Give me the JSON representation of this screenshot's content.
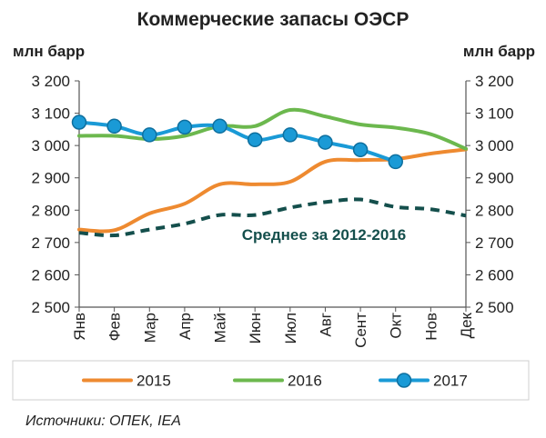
{
  "chart_data": {
    "type": "line",
    "title": "Коммерческие запасы ОЭСР",
    "ylabel_left": "млн барр",
    "ylabel_right": "млн барр",
    "ylim": [
      2500,
      3200
    ],
    "y_ticks": [
      2500,
      2600,
      2700,
      2800,
      2900,
      3000,
      3100,
      3200
    ],
    "y_tick_labels": [
      "2 500",
      "2 600",
      "2 700",
      "2 800",
      "2 900",
      "3 000",
      "3 100",
      "3 200"
    ],
    "categories": [
      "Янв",
      "Фев",
      "Мар",
      "Апр",
      "Май",
      "Июн",
      "Июл",
      "Авг",
      "Сент",
      "Окт",
      "Нов",
      "Дек"
    ],
    "series": [
      {
        "name": "2015",
        "color": "#ee8a30",
        "style": "solid",
        "values": [
          2740,
          2738,
          2790,
          2820,
          2880,
          2880,
          2888,
          2950,
          2955,
          2958,
          2975,
          2988
        ]
      },
      {
        "name": "2016",
        "color": "#6cb84e",
        "style": "solid",
        "values": [
          3030,
          3030,
          3020,
          3030,
          3060,
          3060,
          3110,
          3090,
          3065,
          3055,
          3035,
          2990
        ]
      },
      {
        "name": "2017",
        "color": "#1a9ad6",
        "style": "solid-markers",
        "values": [
          3072,
          3060,
          3033,
          3057,
          3060,
          3018,
          3033,
          3010,
          2987,
          2950,
          null,
          null
        ]
      },
      {
        "name": "",
        "color": "#144f4c",
        "style": "dashed",
        "values": [
          2730,
          2722,
          2740,
          2758,
          2785,
          2785,
          2808,
          2825,
          2833,
          2810,
          2803,
          2783
        ]
      }
    ],
    "annotation": {
      "text": "Среднее за 2012-2016",
      "color": "#144f4c"
    },
    "grid": false,
    "legend": {
      "position": "bottom",
      "items": [
        "2015",
        "2016",
        "2017"
      ]
    }
  },
  "source": "Источники: ОПЕК, IEA"
}
